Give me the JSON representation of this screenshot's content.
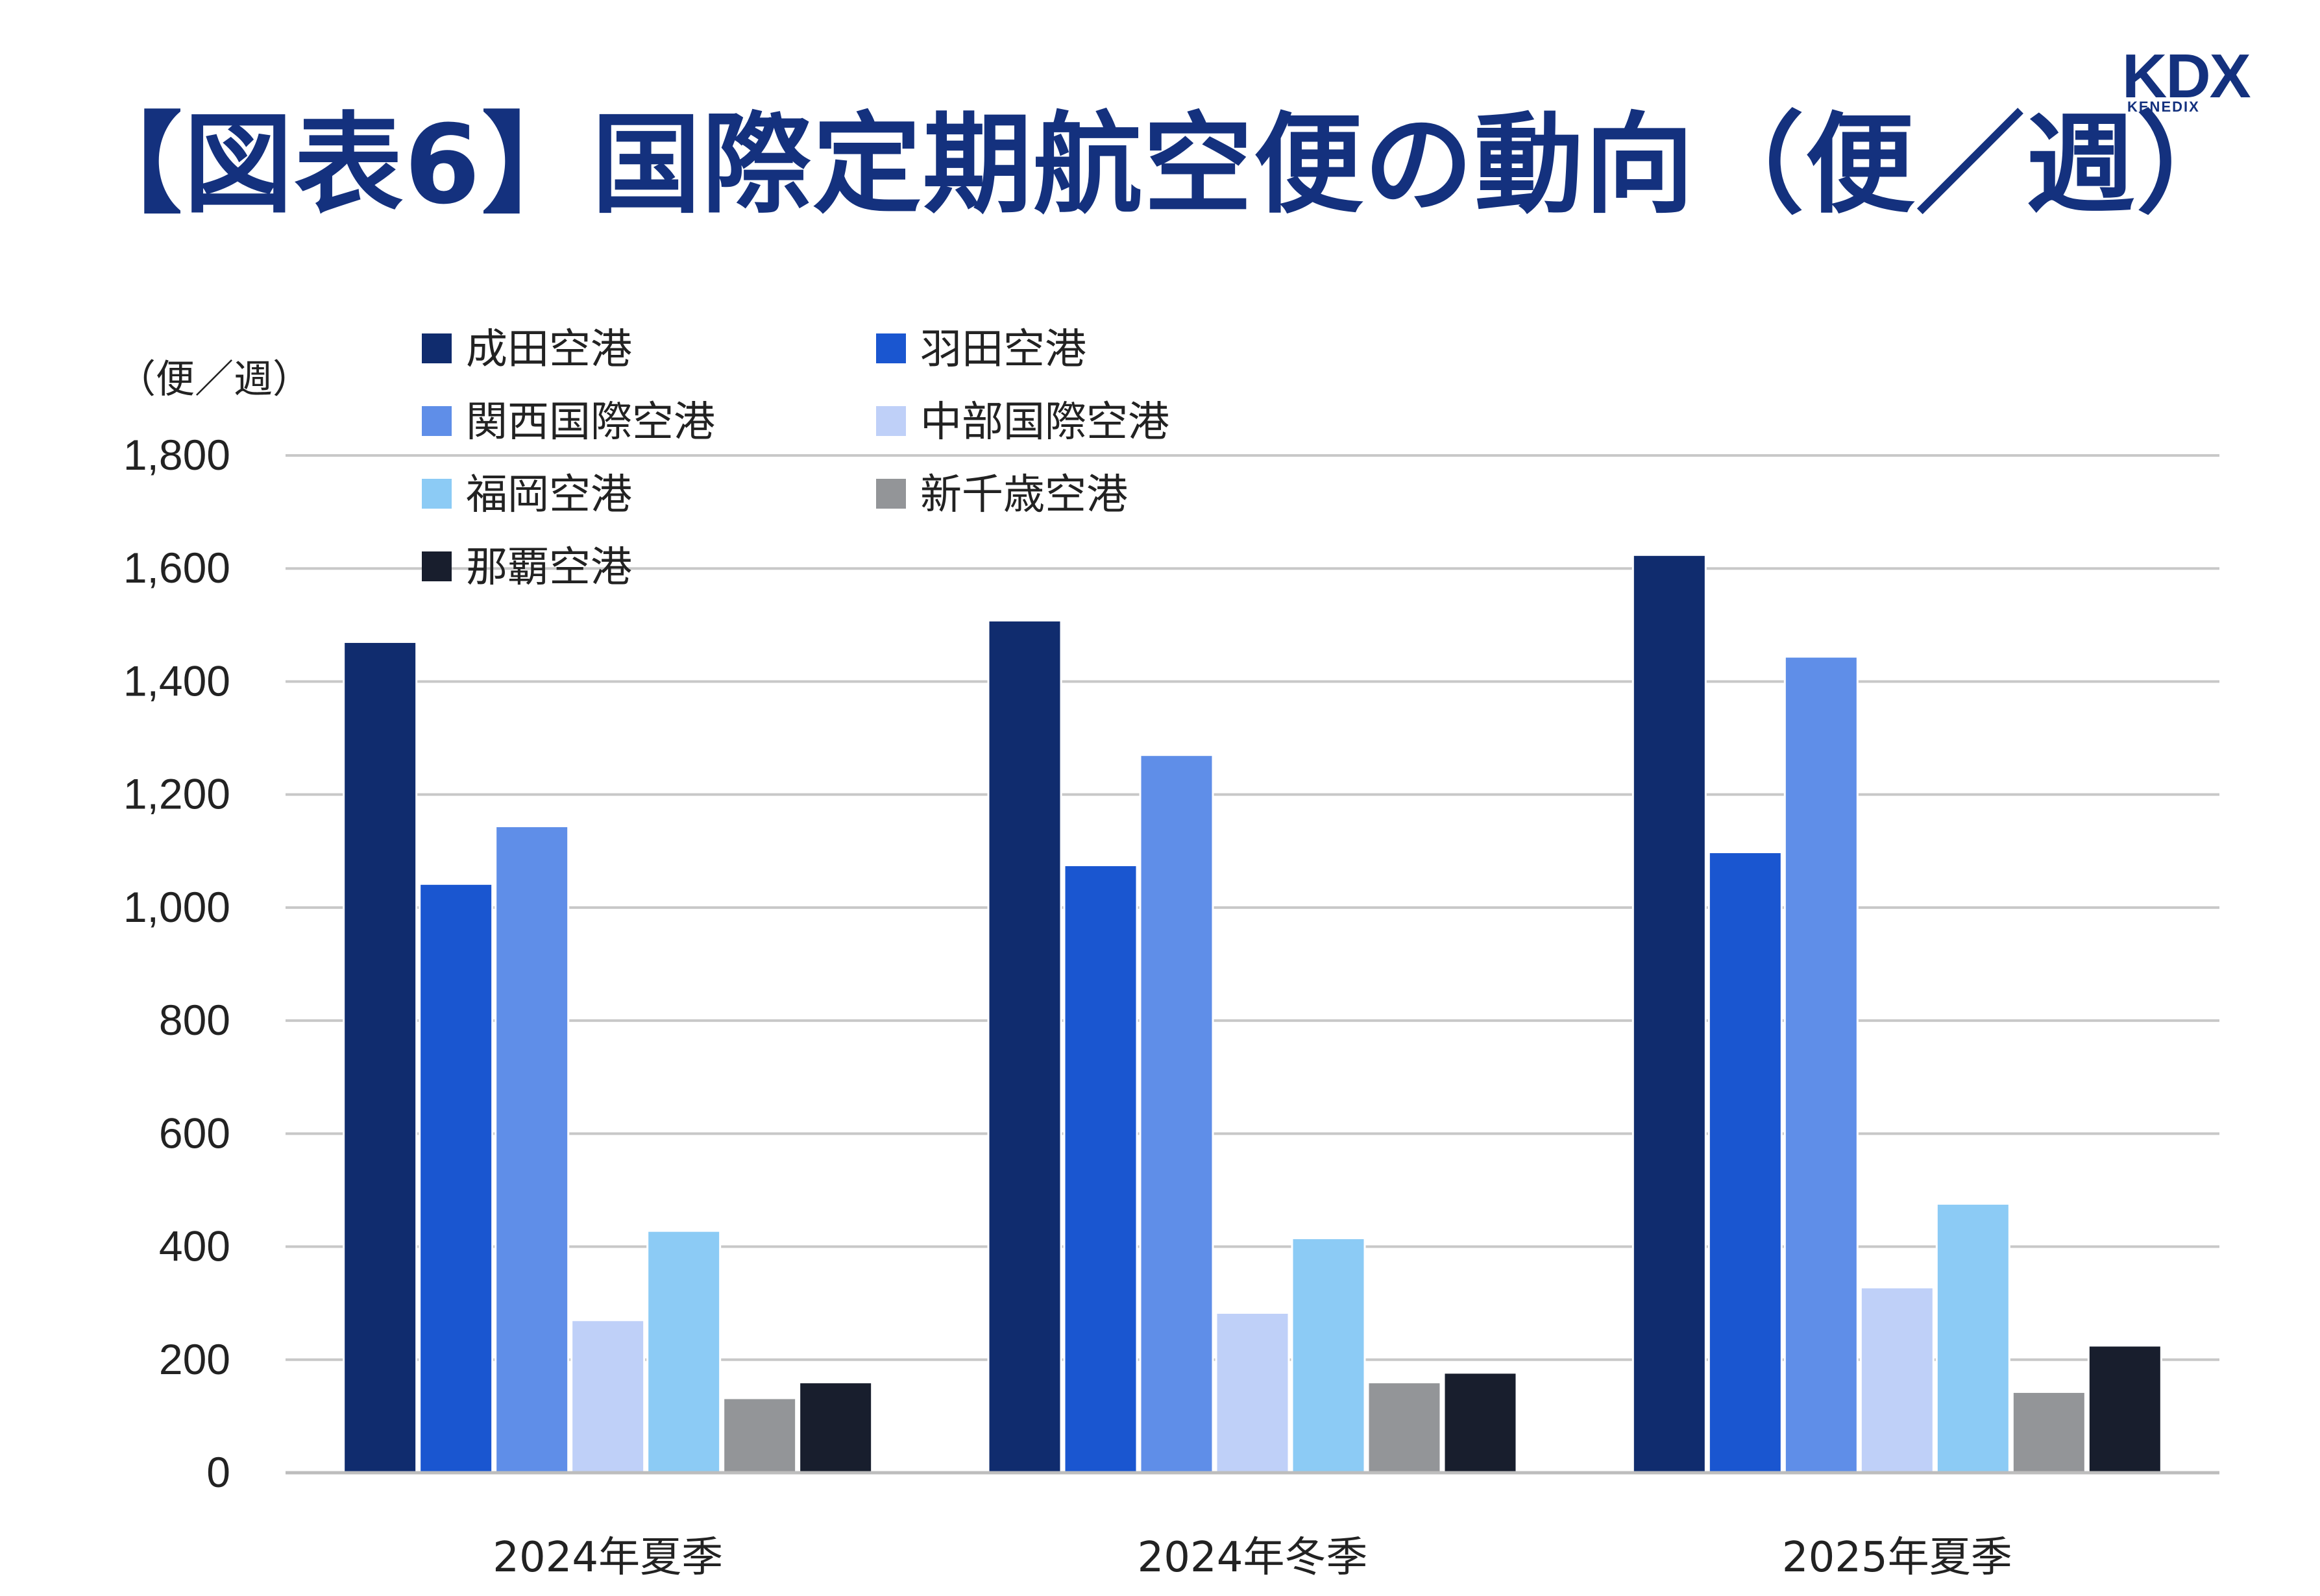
{
  "title": "【図表6】国際定期航空便の動向（便／週）",
  "logo": {
    "main": "KDX",
    "sub": "KENEDIX"
  },
  "colors": {
    "title": "#14317e",
    "grid": "#c8c8c8",
    "axis": "#bdbdbd"
  },
  "chart_data": {
    "type": "bar",
    "unit_label": "（便／週）",
    "categories": [
      "2024年夏季",
      "2024年冬季",
      "2025年夏季"
    ],
    "ylim": [
      0,
      1800
    ],
    "yticks": [
      0,
      200,
      400,
      600,
      800,
      1000,
      1200,
      1400,
      1600,
      1800
    ],
    "ytick_labels": [
      "0",
      "200",
      "400",
      "600",
      "800",
      "1,000",
      "1,200",
      "1,400",
      "1,600",
      "1,800"
    ],
    "grid": true,
    "legend_position": "top-left",
    "series": [
      {
        "name": "成田空港",
        "color": "#102c6e",
        "values": [
          1470,
          1508,
          1624
        ]
      },
      {
        "name": "羽田空港",
        "color": "#1a56d0",
        "values": [
          1042,
          1075,
          1098
        ]
      },
      {
        "name": "関西国際空港",
        "color": "#5f8ee8",
        "values": [
          1144,
          1270,
          1444
        ]
      },
      {
        "name": "中部国際空港",
        "color": "#bfd0f8",
        "values": [
          270,
          283,
          328
        ]
      },
      {
        "name": "福岡空港",
        "color": "#8ccbf5",
        "values": [
          428,
          415,
          476
        ]
      },
      {
        "name": "新千歳空港",
        "color": "#939598",
        "values": [
          132,
          160,
          143
        ]
      },
      {
        "name": "那覇空港",
        "color": "#181e2d",
        "values": [
          160,
          177,
          225
        ]
      }
    ]
  }
}
